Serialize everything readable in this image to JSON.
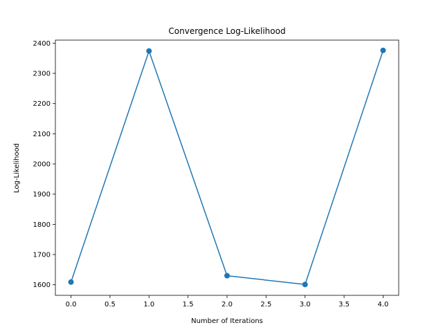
{
  "chart_data": {
    "type": "line",
    "title": "Convergence Log-Likelihood",
    "xlabel": "Number of Iterations",
    "ylabel": "Log-Likelihood",
    "x": [
      0,
      1,
      2,
      3,
      4
    ],
    "series": [
      {
        "values": [
          1609,
          2374,
          1630,
          1601,
          2376
        ],
        "color": "#1f77b4",
        "marker": "circle"
      }
    ],
    "xlim": [
      -0.2,
      4.2
    ],
    "ylim": [
      1565,
      2410
    ],
    "xticks": [
      0.0,
      0.5,
      1.0,
      1.5,
      2.0,
      2.5,
      3.0,
      3.5,
      4.0
    ],
    "xtick_labels": [
      "0.0",
      "0.5",
      "1.0",
      "1.5",
      "2.0",
      "2.5",
      "3.0",
      "3.5",
      "4.0"
    ],
    "yticks": [
      1600,
      1700,
      1800,
      1900,
      2000,
      2100,
      2200,
      2300,
      2400
    ],
    "ytick_labels": [
      "1600",
      "1700",
      "1800",
      "1900",
      "2000",
      "2100",
      "2200",
      "2300",
      "2400"
    ],
    "grid": false,
    "legend": false
  }
}
